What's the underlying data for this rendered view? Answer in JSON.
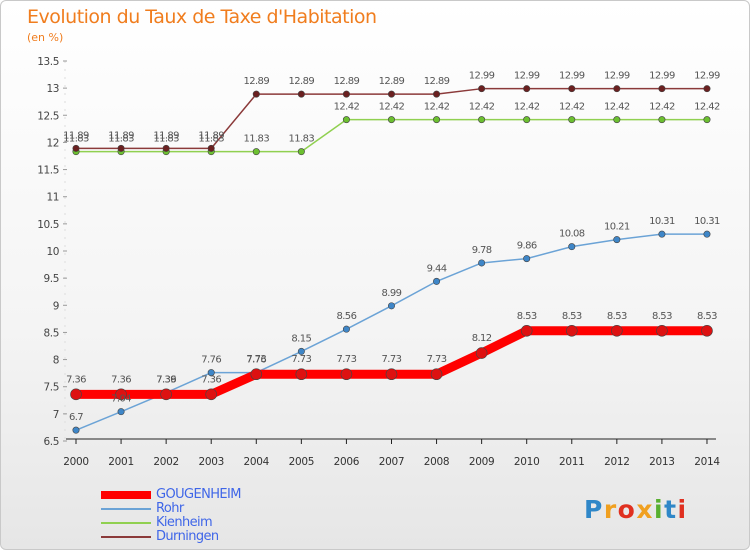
{
  "title": "Evolution du Taux de Taxe d'Habitation",
  "subtitle": "(en %)",
  "logo_text": "Proxiti",
  "chart_data": {
    "type": "line",
    "title": "Evolution du Taux de Taxe d'Habitation",
    "ylabel": "(en %)",
    "xlabel": "",
    "x": [
      2000,
      2001,
      2002,
      2003,
      2004,
      2005,
      2006,
      2007,
      2008,
      2009,
      2010,
      2011,
      2012,
      2013,
      2014
    ],
    "ylim": [
      6.5,
      13.5
    ],
    "yticks": [
      6.5,
      7,
      7.5,
      8,
      8.5,
      9,
      9.5,
      10,
      10.5,
      11,
      11.5,
      12,
      12.5,
      13,
      13.5
    ],
    "ytick_labels": [
      "6.5",
      "7",
      "7.5",
      "8",
      "8.5",
      "9",
      "9.5",
      "10",
      "10.5",
      "11",
      "11.5",
      "12",
      "12.5",
      "13",
      "13.5"
    ],
    "grid": false,
    "legend_position": "bottom-left",
    "series": [
      {
        "name": "GOUGENHEIM",
        "color": "#ff0000",
        "marker_color": "#dd1111",
        "values": [
          7.36,
          7.36,
          7.36,
          7.36,
          7.73,
          7.73,
          7.73,
          7.73,
          7.73,
          8.12,
          8.53,
          8.53,
          8.53,
          8.53,
          8.53
        ],
        "labels": [
          "7.36",
          "7.36",
          "7.36",
          "7.36",
          "7.73",
          "7.73",
          "7.73",
          "7.73",
          "7.73",
          "8.12",
          "8.53",
          "8.53",
          "8.53",
          "8.53",
          "8.53"
        ]
      },
      {
        "name": "Rohr",
        "color": "#6ba3d6",
        "marker_color": "#3e86c8",
        "values": [
          6.7,
          7.04,
          7.39,
          7.76,
          7.76,
          8.15,
          8.56,
          8.99,
          9.44,
          9.78,
          9.86,
          10.08,
          10.21,
          10.31,
          10.31
        ],
        "labels": [
          "6.7",
          "7.04",
          "7.39",
          "7.76",
          "7.76",
          "8.15",
          "8.56",
          "8.99",
          "9.44",
          "9.78",
          "9.86",
          "10.08",
          "10.21",
          "10.31",
          "10.31"
        ]
      },
      {
        "name": "Kienheim",
        "color": "#90d050",
        "marker_color": "#6cc030",
        "values": [
          11.83,
          11.83,
          11.83,
          11.83,
          11.83,
          11.83,
          12.42,
          12.42,
          12.42,
          12.42,
          12.42,
          12.42,
          12.42,
          12.42,
          12.42
        ],
        "labels": [
          "11.83",
          "11.83",
          "11.83",
          "11.83",
          "11.83",
          "11.83",
          "12.42",
          "12.42",
          "12.42",
          "12.42",
          "12.42",
          "12.42",
          "12.42",
          "12.42",
          "12.42"
        ]
      },
      {
        "name": "Durningen",
        "color": "#8b3a3a",
        "marker_color": "#6b2020",
        "values": [
          11.89,
          11.89,
          11.89,
          11.89,
          12.89,
          12.89,
          12.89,
          12.89,
          12.89,
          12.99,
          12.99,
          12.99,
          12.99,
          12.99,
          12.99
        ],
        "labels": [
          "11.89",
          "11.89",
          "11.89",
          "11.89",
          "12.89",
          "12.89",
          "12.89",
          "12.89",
          "12.89",
          "12.99",
          "12.99",
          "12.99",
          "12.99",
          "12.99",
          "12.99"
        ]
      }
    ]
  }
}
